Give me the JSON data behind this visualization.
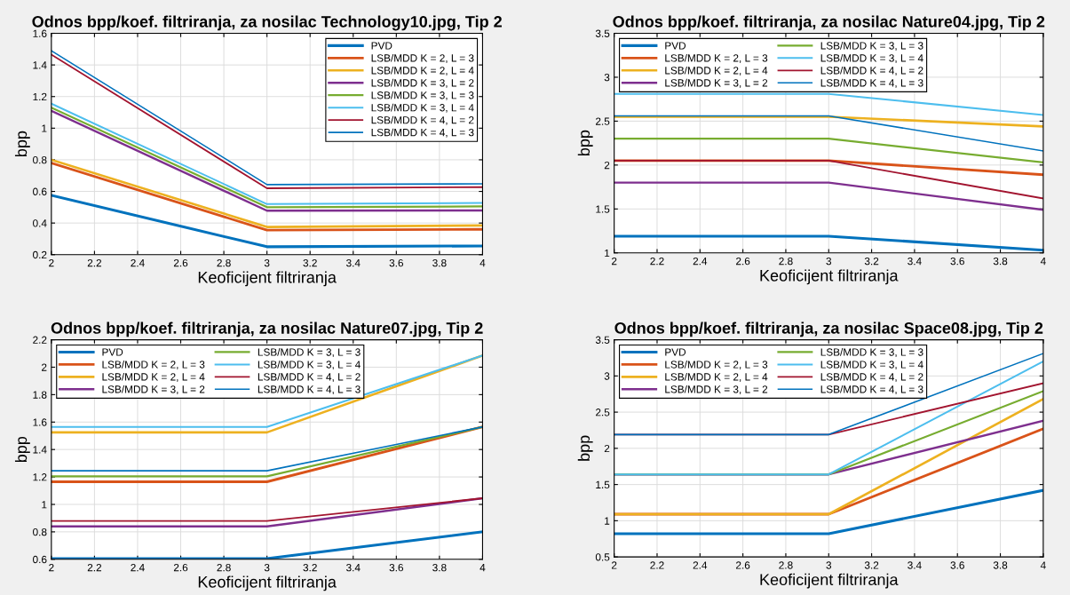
{
  "chart_data": [
    {
      "type": "line",
      "title": "Odnos bpp/koef. filtriranja, za nosilac Technology10.jpg, Tip 2",
      "xlabel": "Keoficijent filtriranja",
      "ylabel": "bpp",
      "x": [
        2,
        3,
        4
      ],
      "xlim": [
        2,
        4
      ],
      "xticks": [
        2,
        2.2,
        2.4,
        2.6,
        2.8,
        3,
        3.2,
        3.4,
        3.6,
        3.8,
        4
      ],
      "ylim": [
        0.2,
        1.6
      ],
      "yticks": [
        0.2,
        0.4,
        0.6,
        0.8,
        1,
        1.2,
        1.4,
        1.6
      ],
      "grid": true,
      "legend": "top right",
      "series": [
        {
          "name": "PVD",
          "color": "#0072bd",
          "values": [
            0.575,
            0.25,
            0.255
          ]
        },
        {
          "name": "LSB/MDD K = 2, L = 3",
          "color": "#d95319",
          "values": [
            0.78,
            0.355,
            0.36
          ]
        },
        {
          "name": "LSB/MDD K = 2, L = 4",
          "color": "#edb120",
          "values": [
            0.8,
            0.375,
            0.385
          ]
        },
        {
          "name": "LSB/MDD K = 3, L = 2",
          "color": "#7e2f8e",
          "values": [
            1.11,
            0.478,
            0.48
          ]
        },
        {
          "name": "LSB/MDD K = 3, L = 3",
          "color": "#77ac30",
          "values": [
            1.13,
            0.5,
            0.505
          ]
        },
        {
          "name": "LSB/MDD K = 3, L = 4",
          "color": "#4dbeee",
          "values": [
            1.155,
            0.52,
            0.527
          ]
        },
        {
          "name": "LSB/MDD K = 4, L = 2",
          "color": "#a2142f",
          "values": [
            1.465,
            0.62,
            0.627
          ]
        },
        {
          "name": "LSB/MDD K = 4, L = 3",
          "color": "#0072bd",
          "values": [
            1.49,
            0.643,
            0.648
          ]
        }
      ]
    },
    {
      "type": "line",
      "title": "Odnos bpp/koef. filtriranja, za nosilac Nature04.jpg, Tip 2",
      "xlabel": "Keoficijent filtriranja",
      "ylabel": "bpp",
      "x": [
        2,
        3,
        4
      ],
      "xlim": [
        2,
        4
      ],
      "xticks": [
        2,
        2.2,
        2.4,
        2.6,
        2.8,
        3,
        3.2,
        3.4,
        3.6,
        3.8,
        4
      ],
      "ylim": [
        1,
        3.5
      ],
      "yticks": [
        1,
        1.5,
        2,
        2.5,
        3,
        3.5
      ],
      "grid": true,
      "legend": "top left",
      "series": [
        {
          "name": "PVD",
          "color": "#0072bd",
          "values": [
            1.19,
            1.19,
            1.03
          ]
        },
        {
          "name": "LSB/MDD K = 2, L = 3",
          "color": "#d95319",
          "values": [
            2.05,
            2.05,
            1.89
          ]
        },
        {
          "name": "LSB/MDD K = 2, L = 4",
          "color": "#edb120",
          "values": [
            2.55,
            2.55,
            2.44
          ]
        },
        {
          "name": "LSB/MDD K = 3, L = 2",
          "color": "#7e2f8e",
          "values": [
            1.8,
            1.8,
            1.49
          ]
        },
        {
          "name": "LSB/MDD K = 3, L = 3",
          "color": "#77ac30",
          "values": [
            2.3,
            2.3,
            2.03
          ]
        },
        {
          "name": "LSB/MDD K = 3, L = 4",
          "color": "#4dbeee",
          "values": [
            2.81,
            2.81,
            2.57
          ]
        },
        {
          "name": "LSB/MDD K = 4, L = 2",
          "color": "#a2142f",
          "values": [
            2.05,
            2.05,
            1.62
          ]
        },
        {
          "name": "LSB/MDD K = 4, L = 3",
          "color": "#0072bd",
          "values": [
            2.56,
            2.56,
            2.16
          ]
        }
      ]
    },
    {
      "type": "line",
      "title": "Odnos bpp/koef. filtriranja, za nosilac Nature07.jpg, Tip 2",
      "xlabel": "Keoficijent filtriranja",
      "ylabel": "bpp",
      "x": [
        2,
        3,
        4
      ],
      "xlim": [
        2,
        4
      ],
      "xticks": [
        2,
        2.2,
        2.4,
        2.6,
        2.8,
        3,
        3.2,
        3.4,
        3.6,
        3.8,
        4
      ],
      "ylim": [
        0.6,
        2.2
      ],
      "yticks": [
        0.6,
        0.8,
        1,
        1.2,
        1.4,
        1.6,
        1.8,
        2,
        2.2
      ],
      "grid": true,
      "legend": "top left",
      "series": [
        {
          "name": "PVD",
          "color": "#0072bd",
          "values": [
            0.605,
            0.605,
            0.8
          ]
        },
        {
          "name": "LSB/MDD K = 2, L = 3",
          "color": "#d95319",
          "values": [
            1.165,
            1.165,
            1.565
          ]
        },
        {
          "name": "LSB/MDD K = 2, L = 4",
          "color": "#edb120",
          "values": [
            1.525,
            1.525,
            2.085
          ]
        },
        {
          "name": "LSB/MDD K = 3, L = 2",
          "color": "#7e2f8e",
          "values": [
            0.84,
            0.84,
            1.045
          ]
        },
        {
          "name": "LSB/MDD K = 3, L = 3",
          "color": "#77ac30",
          "values": [
            1.205,
            1.205,
            1.565
          ]
        },
        {
          "name": "LSB/MDD K = 3, L = 4",
          "color": "#4dbeee",
          "values": [
            1.565,
            1.565,
            2.085
          ]
        },
        {
          "name": "LSB/MDD K = 4, L = 2",
          "color": "#a2142f",
          "values": [
            0.88,
            0.88,
            1.045
          ]
        },
        {
          "name": "LSB/MDD K = 4, L = 3",
          "color": "#0072bd",
          "values": [
            1.245,
            1.245,
            1.565
          ]
        }
      ]
    },
    {
      "type": "line",
      "title": "Odnos bpp/koef. filtriranja, za nosilac Space08.jpg, Tip 2",
      "xlabel": "Keoficijent filtriranja",
      "ylabel": "bpp",
      "x": [
        2,
        3,
        4
      ],
      "xlim": [
        2,
        4
      ],
      "xticks": [
        2,
        2.2,
        2.4,
        2.6,
        2.8,
        3,
        3.2,
        3.4,
        3.6,
        3.8,
        4
      ],
      "ylim": [
        0.5,
        3.5
      ],
      "yticks": [
        0.5,
        1,
        1.5,
        2,
        2.5,
        3,
        3.5
      ],
      "grid": true,
      "legend": "top left",
      "series": [
        {
          "name": "PVD",
          "color": "#0072bd",
          "values": [
            0.82,
            0.82,
            1.42
          ]
        },
        {
          "name": "LSB/MDD K = 2, L = 3",
          "color": "#d95319",
          "values": [
            1.09,
            1.09,
            2.27
          ]
        },
        {
          "name": "LSB/MDD K = 2, L = 4",
          "color": "#edb120",
          "values": [
            1.09,
            1.09,
            2.68
          ]
        },
        {
          "name": "LSB/MDD K = 3, L = 2",
          "color": "#7e2f8e",
          "values": [
            1.64,
            1.64,
            2.38
          ]
        },
        {
          "name": "LSB/MDD K = 3, L = 3",
          "color": "#77ac30",
          "values": [
            1.64,
            1.64,
            2.79
          ]
        },
        {
          "name": "LSB/MDD K = 3, L = 4",
          "color": "#4dbeee",
          "values": [
            1.64,
            1.64,
            3.2
          ]
        },
        {
          "name": "LSB/MDD K = 4, L = 2",
          "color": "#a2142f",
          "values": [
            2.19,
            2.19,
            2.9
          ]
        },
        {
          "name": "LSB/MDD K = 4, L = 3",
          "color": "#0072bd",
          "values": [
            2.19,
            2.19,
            3.31
          ]
        }
      ]
    }
  ]
}
